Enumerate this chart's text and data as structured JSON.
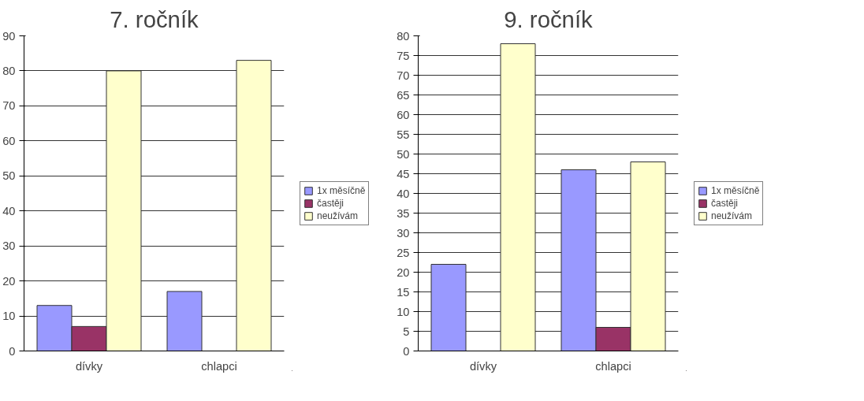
{
  "chart_data": [
    {
      "type": "bar",
      "title": "7. ročník",
      "categories": [
        "dívky",
        "chlapci"
      ],
      "series": [
        {
          "name": "1x měsíčně",
          "color": "#9999ff",
          "values": [
            13,
            17
          ]
        },
        {
          "name": "častěji",
          "color": "#993366",
          "values": [
            7,
            0
          ]
        },
        {
          "name": "neužívám",
          "color": "#ffffcc",
          "values": [
            80,
            83
          ]
        }
      ],
      "ylim": [
        0,
        90
      ],
      "yticks": [
        0,
        10,
        20,
        30,
        40,
        50,
        60,
        70,
        80,
        90
      ],
      "grid": "y",
      "legend": "right"
    },
    {
      "type": "bar",
      "title": "9. ročník",
      "categories": [
        "dívky",
        "chlapci"
      ],
      "series": [
        {
          "name": "1x měsíčně",
          "color": "#9999ff",
          "values": [
            22,
            46
          ]
        },
        {
          "name": "častěji",
          "color": "#993366",
          "values": [
            0,
            6
          ]
        },
        {
          "name": "neužívám",
          "color": "#ffffcc",
          "values": [
            78,
            48
          ]
        }
      ],
      "ylim": [
        0,
        80
      ],
      "yticks": [
        0,
        5,
        10,
        15,
        20,
        25,
        30,
        35,
        40,
        45,
        50,
        55,
        60,
        65,
        70,
        75,
        80
      ],
      "grid": "y",
      "legend": "right"
    }
  ]
}
